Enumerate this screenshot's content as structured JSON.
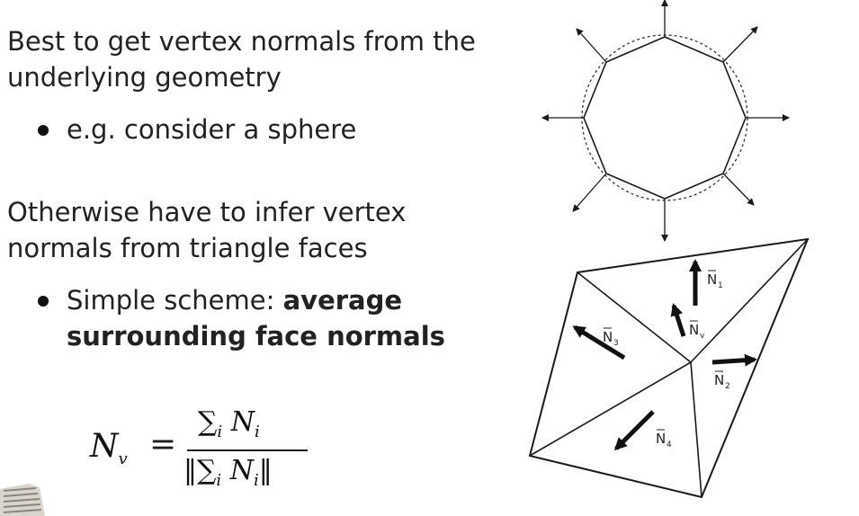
{
  "slide": {
    "heading1": "Best to get vertex normals from the underlying geometry",
    "bullet1": "e.g. consider a sphere",
    "heading2": "Otherwise have to infer vertex normals from triangle faces",
    "bullet2_plain": "Simple scheme: ",
    "bullet2_bold": "average surrounding face normals"
  },
  "formula": {
    "lhs": "N",
    "lhs_sub": "v",
    "equals": "=",
    "numerator": "∑",
    "sum_sub": "i",
    "term": "N",
    "term_sub": "i",
    "norm_bar": "‖"
  },
  "figure_labels": {
    "n1": "N",
    "n1_sub": "1",
    "n2": "N",
    "n2_sub": "2",
    "n3": "N",
    "n3_sub": "3",
    "n4": "N",
    "n4_sub": "4",
    "nv": "N",
    "nv_sub": "v"
  },
  "colors": {
    "text": "#222222",
    "line": "#1a1a1a",
    "background": "#ffffff"
  }
}
